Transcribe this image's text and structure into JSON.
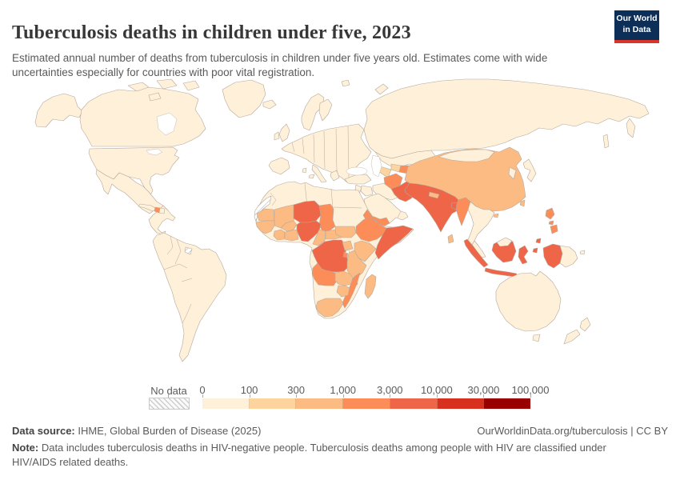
{
  "header": {
    "title": "Tuberculosis deaths in children under five, 2023",
    "subtitle": "Estimated annual number of deaths from tuberculosis in children under five years old. Estimates come with wide uncertainties especially for countries with poor vital registration.",
    "logo": {
      "line1": "Our World",
      "line2": "in Data",
      "bg_color": "#0d2e57",
      "accent_color": "#d8352b"
    }
  },
  "legend": {
    "no_data_label": "No data"
  },
  "chart_data": {
    "type": "choropleth_map",
    "title": "Tuberculosis deaths in children under five",
    "year": 2023,
    "metric": "Estimated annual number of tuberculosis deaths in children under five years old",
    "scale": {
      "kind": "log-binned",
      "bin_edges": [
        0,
        100,
        300,
        1000,
        3000,
        10000,
        30000,
        100000
      ],
      "bin_edge_labels": [
        "0",
        "100",
        "300",
        "1,000",
        "3,000",
        "10,000",
        "30,000",
        "100,000"
      ],
      "bin_descriptions": [
        "0-100",
        "100-300",
        "300-1,000",
        "1,000-3,000",
        "3,000-10,000",
        "10,000-30,000",
        "30,000-100,000"
      ],
      "colors": [
        "#fef0d9",
        "#fdd49e",
        "#fdbb84",
        "#fc8d59",
        "#ef6548",
        "#d7301f",
        "#990000"
      ],
      "no_data": {
        "label": "No data",
        "style": "diagonal-hatch"
      }
    },
    "country_bins": {
      "United States": 0,
      "Canada": 0,
      "Greenland": 0,
      "Mexico": 0,
      "Central America": 0,
      "Cuba": 0,
      "Dominican Republic": 0,
      "Haiti": 3,
      "South America": 0,
      "French Guiana": "no-data",
      "Iceland": 0,
      "United Kingdom": 0,
      "Ireland": 0,
      "Scandinavia": 0,
      "Finland": 0,
      "Europe": 0,
      "Iberia": 0,
      "Italy": 0,
      "Greece": 0,
      "Russia": 0,
      "Kazakhstan": 0,
      "Turkmenistan": 1,
      "Uzbekistan": 1,
      "Tajikistan": 3,
      "Turkey": 0,
      "Syria": 0,
      "Iraq": 0,
      "Iran": 0,
      "Arabian Peninsula": 0,
      "Yemen": 3,
      "Afghanistan": 3,
      "Pakistan": 4,
      "India": 4,
      "Nepal": 2,
      "Bangladesh": 4,
      "Sri Lanka": 2,
      "Myanmar": 3,
      "China": 2,
      "Mongolia": 0,
      "South Korea": 0,
      "Japan": 0,
      "Taiwan": 2,
      "Hainan": 2,
      "Thailand-Indochina": 0,
      "Malaysia": 0,
      "Philippines": 3,
      "Indonesia": 4,
      "Papua New Guinea": 0,
      "Australia": 0,
      "New Zealand": 0,
      "Africa other": 0,
      "Western Sahara": "no-data",
      "Mauritania": 2,
      "Mali": 2,
      "Niger": 4,
      "Chad": 3,
      "Senegal-Guinea": 2,
      "Burkina Faso": 2,
      "Côte d'Ivoire": 2,
      "Ghana-Togo-Benin": 2,
      "Nigeria": 4,
      "Cameroon": 2,
      "Central African Republic": 2,
      "South Sudan": 2,
      "Eritrea": 3,
      "Ethiopia": 3,
      "Somalia": 4,
      "Uganda": 2,
      "Kenya": 2,
      "DR Congo": 4,
      "Rwanda-Burundi": 3,
      "Tanzania": 2,
      "Angola": 3,
      "Zambia": 2,
      "Malawi": 3,
      "Mozambique": 3,
      "Zimbabwe": 2,
      "South Africa": 2,
      "Madagascar": 2
    }
  },
  "footer": {
    "source_label": "Data source:",
    "source_text": " IHME, Global Burden of Disease (2025)",
    "credit": "OurWorldinData.org/tuberculosis | CC BY",
    "note_label": "Note:",
    "note_text": " Data includes tuberculosis deaths in HIV-negative people. Tuberculosis deaths among people with HIV are classified under HIV/AIDS related deaths."
  }
}
